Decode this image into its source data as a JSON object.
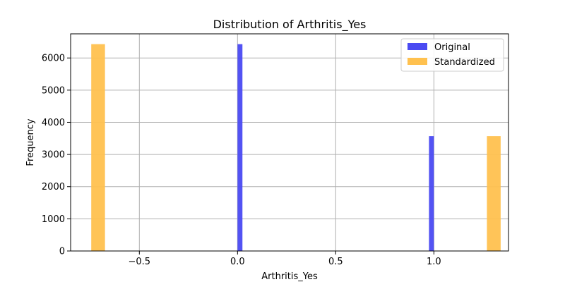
{
  "chart_data": {
    "type": "bar",
    "title": "Distribution of Arthritis_Yes",
    "xlabel": "Arthritis_Yes",
    "ylabel": "Frequency",
    "xlim": [
      -0.85,
      1.38
    ],
    "ylim": [
      0,
      6750
    ],
    "grid": true,
    "legend_position": "top-right",
    "x_ticks": [
      -0.5,
      0.0,
      0.5,
      1.0
    ],
    "x_tick_labels": [
      "−0.5",
      "0.0",
      "0.5",
      "1.0"
    ],
    "y_ticks": [
      0,
      1000,
      2000,
      3000,
      4000,
      5000,
      6000
    ],
    "y_tick_labels": [
      "0",
      "1000",
      "2000",
      "3000",
      "4000",
      "5000",
      "6000"
    ],
    "series": [
      {
        "name": "Original",
        "color": "#4a4af2",
        "bars": [
          {
            "x0": 0.0,
            "x1": 0.025,
            "value": 6430
          },
          {
            "x0": 0.975,
            "x1": 1.0,
            "value": 3570
          }
        ]
      },
      {
        "name": "Standardized",
        "color": "#ffc14f",
        "bars": [
          {
            "x0": -0.745,
            "x1": -0.675,
            "value": 6430
          },
          {
            "x0": 1.27,
            "x1": 1.34,
            "value": 3570
          }
        ]
      }
    ]
  }
}
